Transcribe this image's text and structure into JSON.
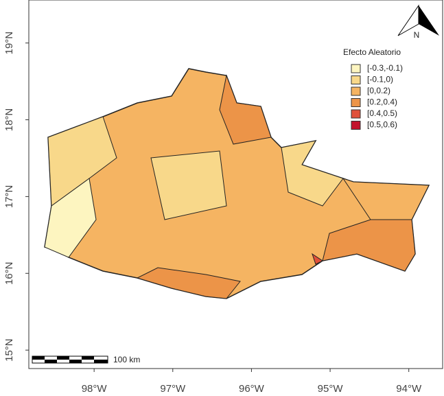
{
  "map": {
    "xlim": [
      -98.83,
      -93.57
    ],
    "ylim": [
      14.76,
      19.56
    ],
    "xticks": [
      {
        "value": -98,
        "label": "98°W"
      },
      {
        "value": -97,
        "label": "97°W"
      },
      {
        "value": -96,
        "label": "96°W"
      },
      {
        "value": -95,
        "label": "95°W"
      },
      {
        "value": -94,
        "label": "94°W"
      }
    ],
    "yticks": [
      {
        "value": 15,
        "label": "15°N"
      },
      {
        "value": 16,
        "label": "16°N"
      },
      {
        "value": 17,
        "label": "17°N"
      },
      {
        "value": 18,
        "label": "18°N"
      },
      {
        "value": 19,
        "label": "19°N"
      }
    ],
    "legend": {
      "title": "Efecto Aleatorio",
      "items": [
        {
          "label": "[-0.3,-0.1)",
          "color": "#fdf5c0"
        },
        {
          "label": "[-0.1,0)",
          "color": "#f8d88a"
        },
        {
          "label": "[0,0.2)",
          "color": "#f5b462"
        },
        {
          "label": "[0.2,0.4)",
          "color": "#ec9448"
        },
        {
          "label": "[0.4,0.5)",
          "color": "#e0503a"
        },
        {
          "label": "[0.5,0.6)",
          "color": "#c3142d"
        }
      ]
    },
    "scale_bar": "100 km",
    "north": "N"
  }
}
